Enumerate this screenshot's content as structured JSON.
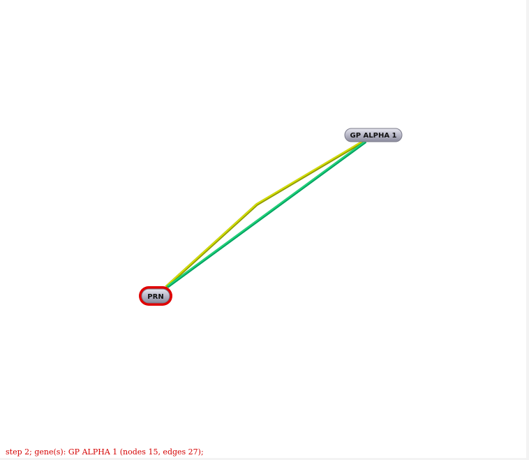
{
  "graph": {
    "nodes": [
      {
        "id": "gp_alpha_1",
        "label": "GP ALPHA 1",
        "selected": false
      },
      {
        "id": "prn",
        "label": "PRN",
        "selected": true
      }
    ],
    "edges": [
      {
        "from": "prn",
        "to": "gp_alpha_1",
        "color": "#c8d400",
        "style": "curved"
      },
      {
        "from": "prn",
        "to": "gp_alpha_1",
        "color": "#00c46a",
        "style": "straight"
      }
    ],
    "colors": {
      "node_fill": "#b8b8c8",
      "selected_outline": "#e00000"
    }
  },
  "status": {
    "text": "step 2; gene(s): GP ALPHA 1 (nodes 15, edges 27);"
  }
}
